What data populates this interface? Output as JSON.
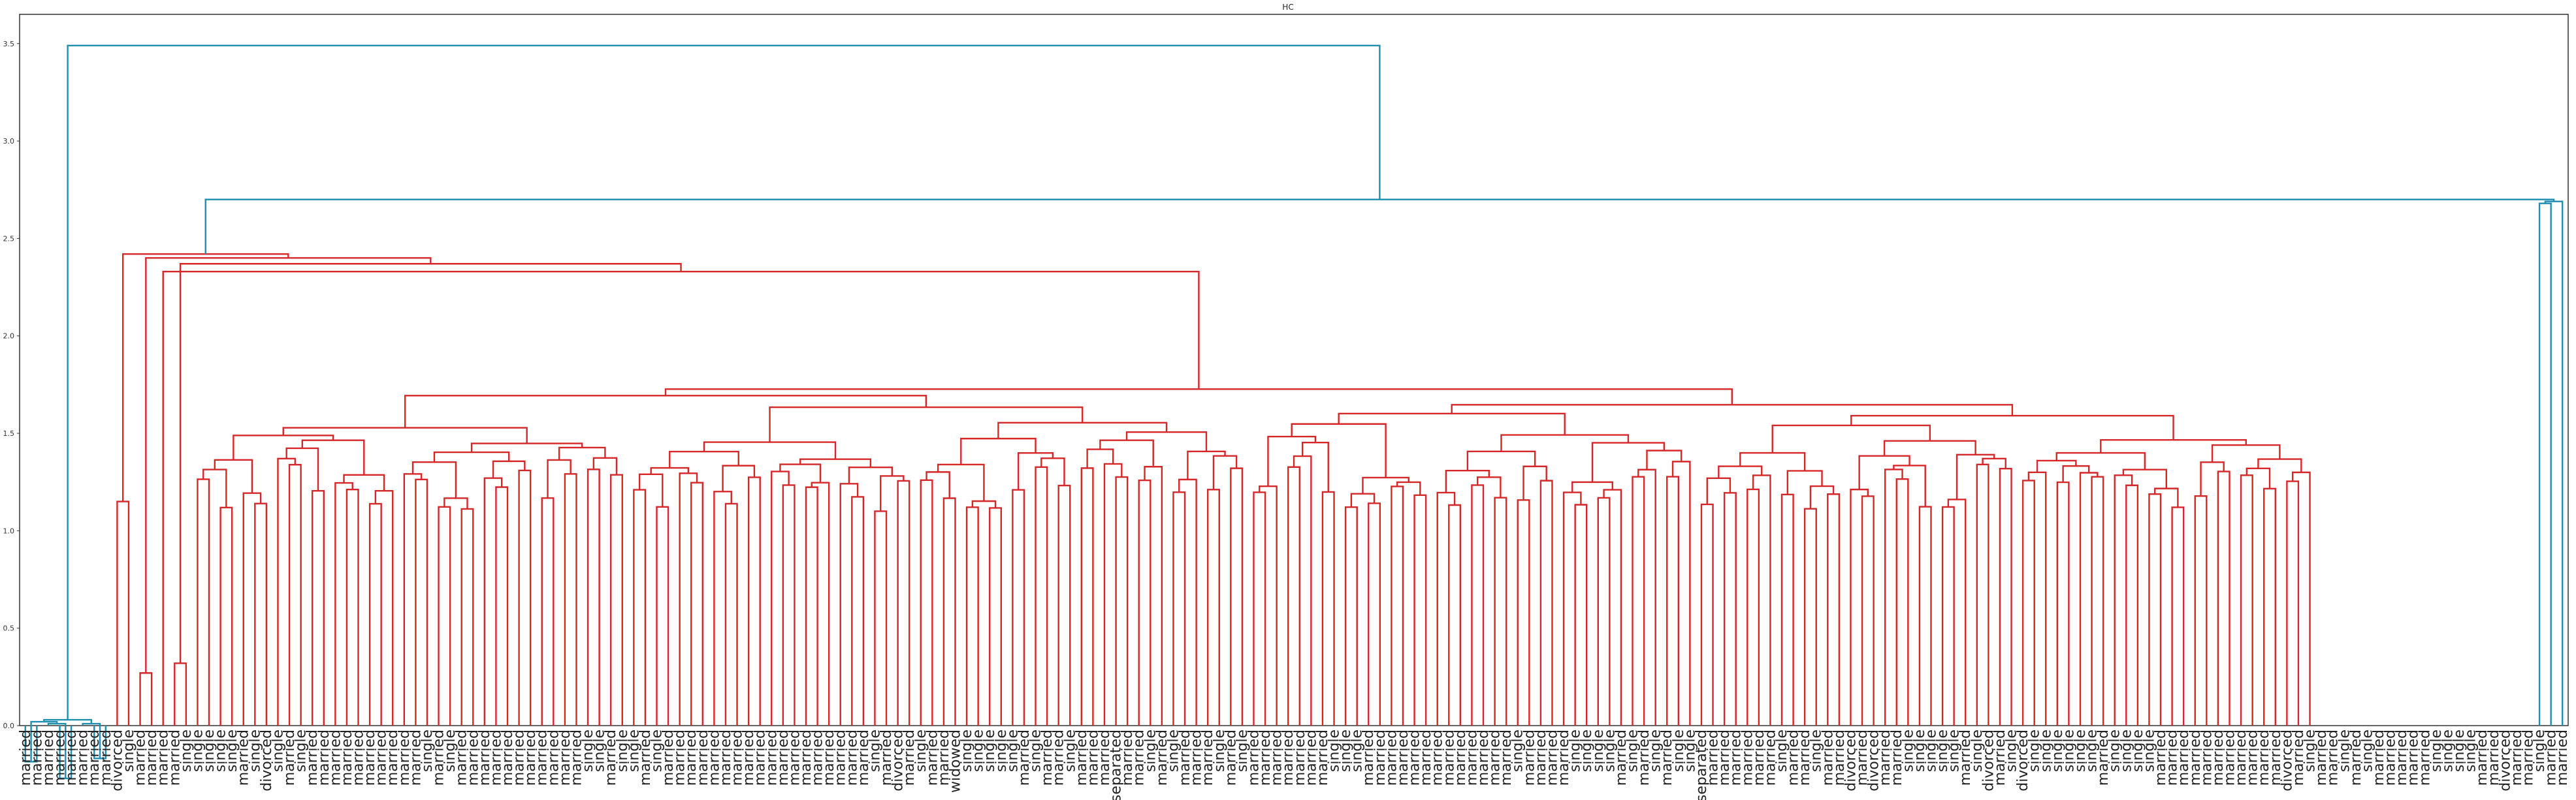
{
  "chart_data": {
    "type": "dendrogram",
    "title": "HC",
    "xlabel": "",
    "ylabel": "",
    "ylim": [
      0,
      3.65
    ],
    "yticks": [
      "0.0",
      "0.5",
      "1.0",
      "1.5",
      "2.0",
      "2.5",
      "3.0",
      "3.5"
    ],
    "grid": false,
    "colors": {
      "main_cluster": "#d62728",
      "link": "#1f8fb0",
      "axis": "#333333"
    },
    "leaves": [
      "married",
      "married",
      "married",
      "married",
      "married",
      "married",
      "married",
      "married",
      "divorced",
      "single",
      "married",
      "married",
      "married",
      "married",
      "single",
      "single",
      "single",
      "single",
      "single",
      "married",
      "single",
      "divorced",
      "single",
      "married",
      "single",
      "married",
      "married",
      "married",
      "married",
      "married",
      "married",
      "married",
      "married",
      "married",
      "married",
      "single",
      "married",
      "single",
      "married",
      "married",
      "married",
      "married",
      "married",
      "married",
      "married",
      "married",
      "married",
      "married",
      "married",
      "single",
      "single",
      "married",
      "single",
      "single",
      "married",
      "single",
      "married",
      "married",
      "married",
      "married",
      "married",
      "married",
      "married",
      "married",
      "married",
      "married",
      "married",
      "married",
      "married",
      "married",
      "married",
      "married",
      "married",
      "married",
      "single",
      "married",
      "divorced",
      "married",
      "single",
      "married",
      "married",
      "widowed",
      "single",
      "single",
      "single",
      "single",
      "single",
      "married",
      "single",
      "married",
      "married",
      "single",
      "married",
      "married",
      "married",
      "separated",
      "married",
      "married",
      "single",
      "married",
      "single",
      "married",
      "married",
      "married",
      "single",
      "married",
      "single",
      "married",
      "married",
      "married",
      "married",
      "married",
      "married",
      "married",
      "single",
      "single",
      "single",
      "married",
      "married",
      "married",
      "married",
      "married",
      "married",
      "married",
      "married",
      "married",
      "married",
      "married",
      "married",
      "married",
      "single",
      "married",
      "married",
      "married",
      "married",
      "single",
      "single",
      "single",
      "single",
      "married",
      "single",
      "married",
      "single",
      "married",
      "single",
      "single",
      "separated",
      "married",
      "married",
      "married",
      "married",
      "married",
      "married",
      "single",
      "married",
      "married",
      "single",
      "married",
      "married",
      "divorced",
      "married",
      "divorced",
      "married",
      "married",
      "single",
      "single",
      "single",
      "single",
      "single",
      "married",
      "single",
      "divorced",
      "married",
      "single",
      "divorced",
      "single",
      "single",
      "single",
      "single",
      "single",
      "single",
      "married",
      "single",
      "single",
      "single",
      "single",
      "married",
      "married",
      "married",
      "married",
      "married",
      "married",
      "married",
      "married",
      "married",
      "married",
      "married",
      "divorced",
      "married",
      "single",
      "married",
      "married",
      "single",
      "married",
      "single",
      "married",
      "married",
      "married",
      "married",
      "married",
      "single",
      "single",
      "single",
      "single",
      "married",
      "married",
      "divorced",
      "married",
      "married",
      "single",
      "married",
      "married"
    ]
  }
}
